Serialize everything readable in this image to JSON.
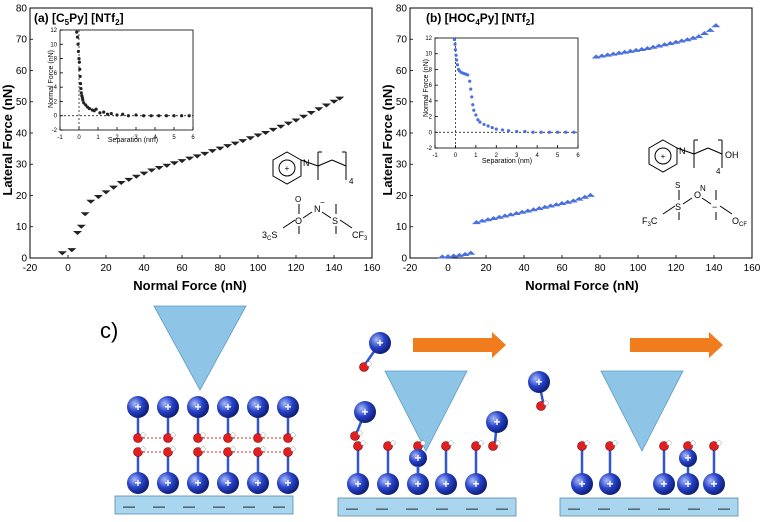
{
  "colors": {
    "series_a": "#222222",
    "series_b": "#4a6fe0",
    "tip": "#8ec5e6",
    "substrate": "#a9d6ee",
    "cation": "#2742c8",
    "arrow": "#f07c1e",
    "hbond": "#d12b2b",
    "oxygen": "#e02020"
  },
  "chart_data": [
    {
      "type": "scatter",
      "panel_label": "(a) [C",
      "panel_sub": "5",
      "panel_mid": "Py] [NTf",
      "panel_sub2": "2",
      "panel_end": "]",
      "xlabel": "Normal Force (nN)",
      "ylabel": "Lateral Force (nN)",
      "xlim": [
        -20,
        160
      ],
      "ylim": [
        0,
        80
      ],
      "xticks": [
        "-20",
        "0",
        "20",
        "40",
        "60",
        "80",
        "100",
        "120",
        "140",
        "160"
      ],
      "yticks": [
        "0",
        "10",
        "20",
        "30",
        "40",
        "50",
        "60",
        "70",
        "80"
      ],
      "marker": "triangle-down",
      "x": [
        -3,
        2,
        5,
        7,
        9,
        12,
        16,
        20,
        24,
        28,
        32,
        36,
        40,
        44,
        48,
        52,
        56,
        60,
        64,
        68,
        72,
        76,
        80,
        84,
        88,
        92,
        96,
        100,
        104,
        108,
        112,
        116,
        120,
        124,
        128,
        132,
        136,
        140,
        143
      ],
      "y": [
        1.5,
        2.5,
        8,
        10,
        14,
        18,
        19.5,
        21,
        22.5,
        24,
        25,
        26,
        27,
        28,
        28.8,
        29.5,
        30.3,
        31,
        31.8,
        32.5,
        33.3,
        34.2,
        35,
        35.8,
        36.6,
        37.4,
        38.3,
        39.2,
        40,
        41,
        42,
        43,
        44,
        45.2,
        46.4,
        47.6,
        48.8,
        50,
        51
      ],
      "inset": {
        "xlabel": "Separation (nm)",
        "ylabel": "Normal Force (nN)",
        "xlim": [
          -1,
          6
        ],
        "ylim": [
          -2,
          12
        ],
        "xticks": [
          "-1",
          "0",
          "1",
          "2",
          "3",
          "4",
          "5",
          "6"
        ],
        "yticks": [
          "-2",
          "0",
          "2",
          "4",
          "6",
          "8",
          "10",
          "12"
        ],
        "x": [
          -0.12,
          -0.08,
          -0.05,
          -0.03,
          0,
          0.02,
          0.04,
          0.06,
          0.08,
          0.1,
          0.12,
          0.15,
          0.18,
          0.2,
          0.25,
          0.35,
          0.45,
          0.55,
          0.7,
          0.8,
          0.9,
          1.1,
          1.3,
          1.5,
          1.7,
          2,
          2.3,
          2.6,
          3,
          3.4,
          3.8,
          4.2,
          4.6,
          5,
          5.4,
          5.8
        ],
        "y": [
          11.7,
          11,
          10,
          9,
          8,
          7.5,
          6.5,
          5.5,
          4.5,
          3.8,
          3.2,
          2.8,
          2.5,
          2.2,
          1.8,
          1.5,
          1.2,
          1,
          0.8,
          0.7,
          0.9,
          0.4,
          0.5,
          0.2,
          0.3,
          0.1,
          0.2,
          0,
          0.1,
          0,
          0,
          0,
          0,
          0,
          0,
          0
        ]
      },
      "structure_labels": [
        "N",
        "+",
        "4",
        "F",
        "3",
        "C",
        "S",
        "O",
        "N",
        "−",
        "S",
        "O",
        "CF",
        "3"
      ]
    },
    {
      "type": "scatter",
      "panel_label": "(b) [HOC",
      "panel_sub": "4",
      "panel_mid": "Py] [NTf",
      "panel_sub2": "2",
      "panel_end": "]",
      "xlabel": "Normal Force (nN)",
      "ylabel": "Lateral Force (nN)",
      "xlim": [
        -20,
        160
      ],
      "ylim": [
        0,
        80
      ],
      "xticks": [
        "-20",
        "0",
        "20",
        "40",
        "60",
        "80",
        "100",
        "120",
        "140",
        "160"
      ],
      "yticks": [
        "0",
        "10",
        "20",
        "30",
        "40",
        "50",
        "60",
        "70",
        "80"
      ],
      "marker": "triangle-up",
      "x": [
        -3,
        0,
        3,
        6,
        9,
        12,
        15,
        18,
        21,
        24,
        27,
        30,
        33,
        36,
        39,
        42,
        45,
        48,
        51,
        54,
        57,
        60,
        63,
        66,
        69,
        72,
        75,
        78,
        81,
        84,
        87,
        90,
        93,
        96,
        99,
        102,
        105,
        108,
        111,
        114,
        117,
        120,
        123,
        126,
        129,
        132,
        135,
        138,
        141
      ],
      "y": [
        0.5,
        0.6,
        0.8,
        1,
        1.3,
        1.7,
        11.5,
        12,
        12.4,
        12.8,
        13.2,
        13.6,
        14,
        14.4,
        14.8,
        15.2,
        15.6,
        16,
        16.4,
        16.8,
        17.2,
        17.6,
        18,
        18.4,
        19,
        19.6,
        20.2,
        64.5,
        64.8,
        65.1,
        65.4,
        65.7,
        66,
        66.3,
        66.6,
        66.9,
        67.2,
        67.6,
        68,
        68.4,
        68.8,
        69.2,
        69.6,
        70,
        70.5,
        71,
        72,
        73,
        74.5
      ],
      "inset": {
        "xlabel": "Separation (nm)",
        "ylabel": "Normal Force (nN)",
        "xlim": [
          -1,
          6
        ],
        "ylim": [
          -2,
          12
        ],
        "xticks": [
          "-1",
          "0",
          "1",
          "2",
          "3",
          "4",
          "5",
          "6"
        ],
        "yticks": [
          "-2",
          "0",
          "2",
          "4",
          "6",
          "8",
          "10",
          "12"
        ],
        "x": [
          -0.05,
          -0.02,
          0,
          0.03,
          0.06,
          0.1,
          0.15,
          0.2,
          0.3,
          0.4,
          0.5,
          0.6,
          0.7,
          0.75,
          0.8,
          0.85,
          0.9,
          1,
          1.1,
          1.2,
          1.4,
          1.6,
          1.8,
          2,
          2.3,
          2.6,
          3,
          3.4,
          3.8,
          4.2,
          4.6,
          5,
          5.4,
          5.8
        ],
        "y": [
          11.8,
          11.2,
          10.5,
          9.8,
          9.2,
          8.6,
          8,
          7.8,
          7.6,
          7.5,
          7.4,
          7.3,
          6.5,
          5.5,
          4.5,
          3.5,
          2.8,
          2.2,
          1.6,
          1.3,
          1,
          0.8,
          0.6,
          0.4,
          0.3,
          0.2,
          0.1,
          0.1,
          0,
          0,
          0,
          0,
          0,
          0
        ]
      },
      "structure_labels": [
        "N",
        "+",
        "OH",
        "4",
        "F",
        "3",
        "C",
        "S",
        "O",
        "N",
        "−",
        "S",
        "O",
        "CF",
        "3"
      ]
    }
  ],
  "diagram": {
    "label": "c)",
    "plus": "+",
    "minus": "—"
  }
}
